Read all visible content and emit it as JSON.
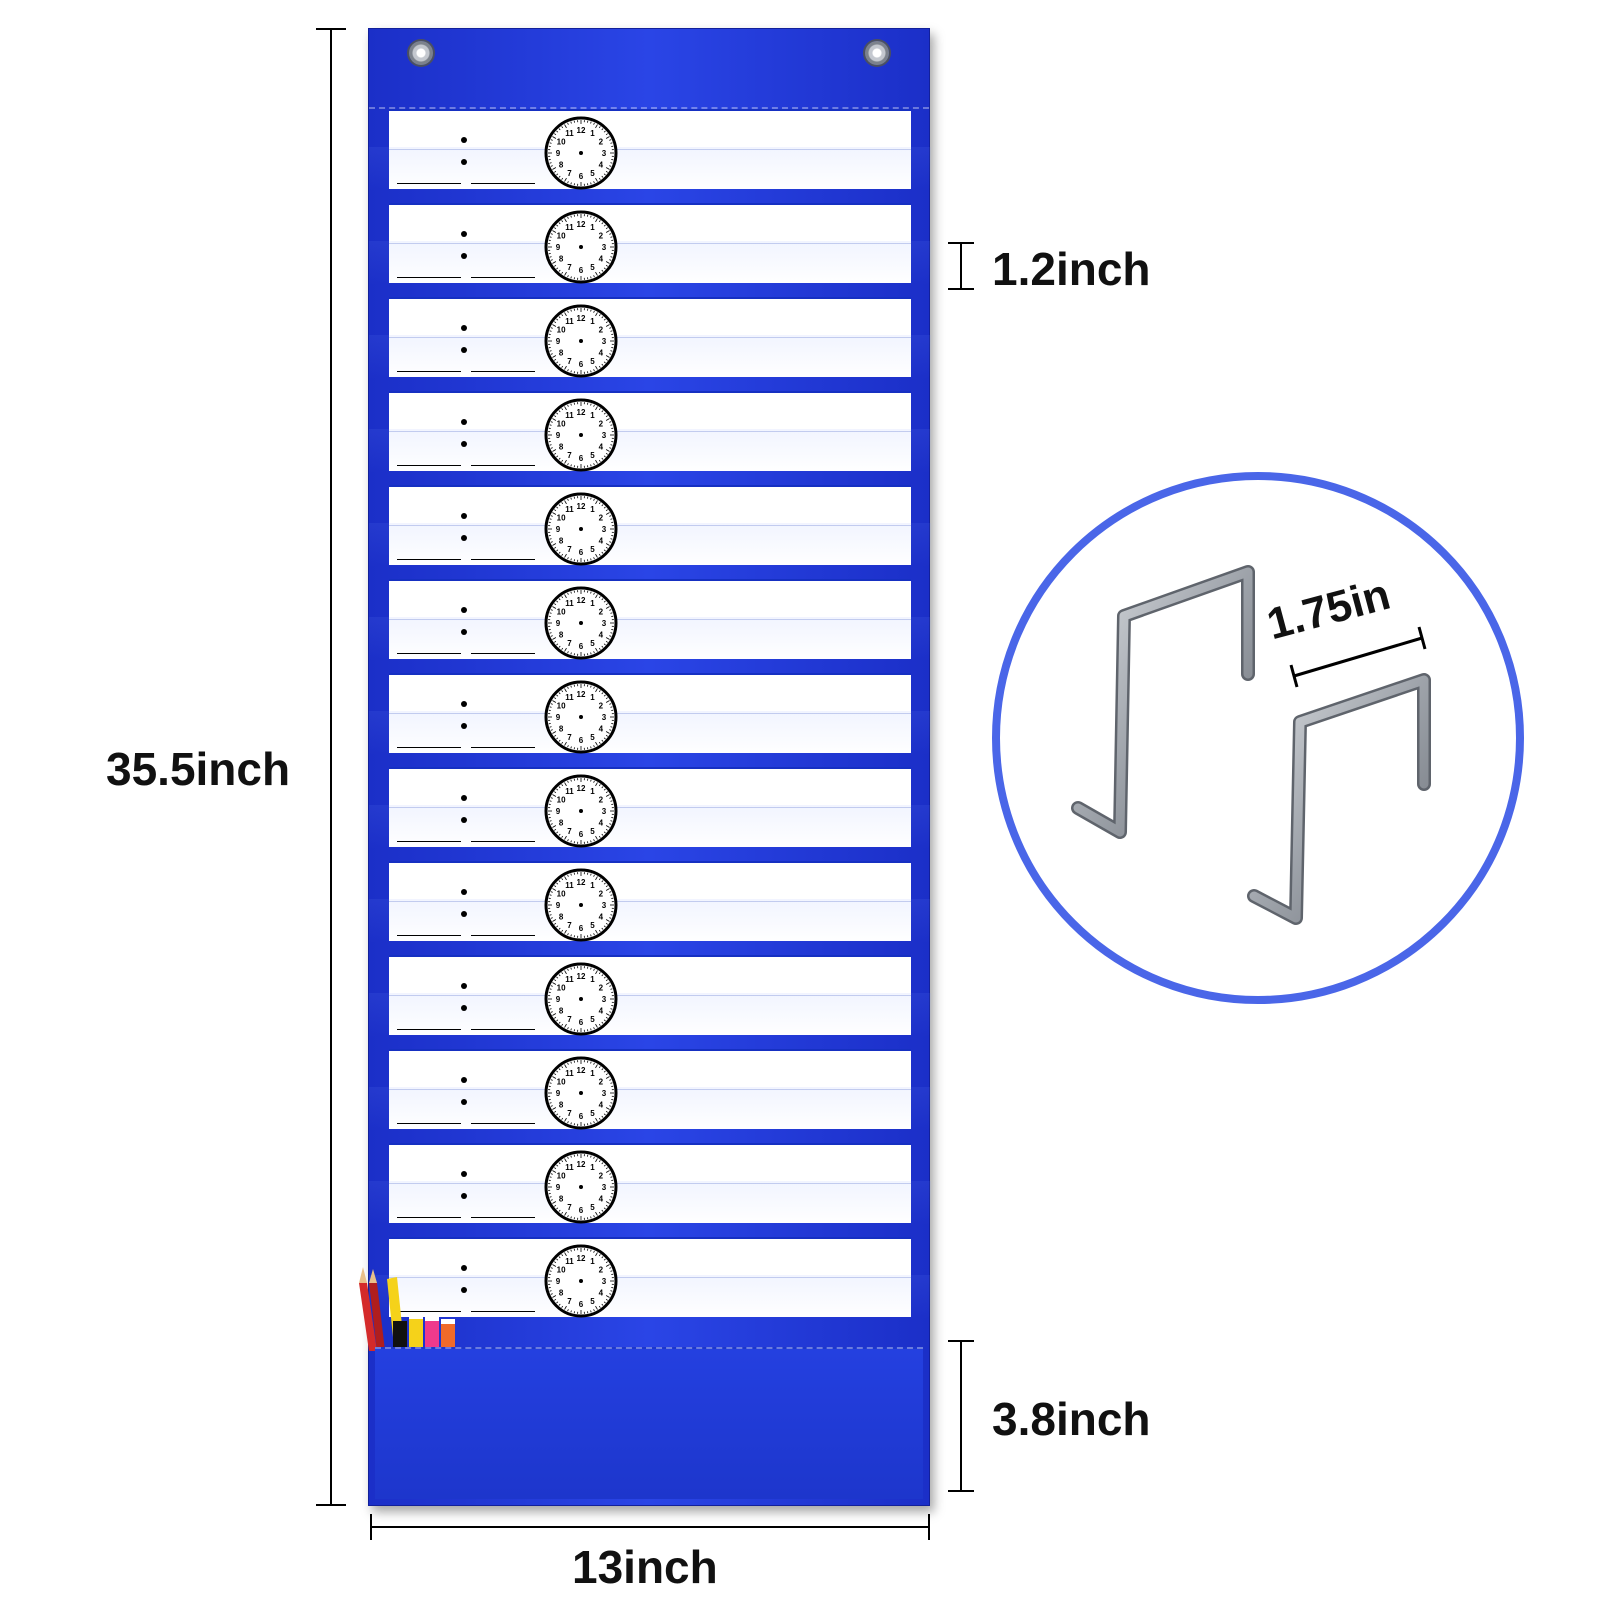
{
  "dimensions": {
    "height_label": "35.5inch",
    "width_label": "13inch",
    "pocket_height_label": "1.2inch",
    "bottom_pocket_label": "3.8inch",
    "hook_width_label": "1.75in"
  },
  "clock_numbers": [
    "12",
    "1",
    "2",
    "3",
    "4",
    "5",
    "6",
    "7",
    "8",
    "9",
    "10",
    "11"
  ],
  "strip_count": 13,
  "colors": {
    "chart_blue": "#2238d8",
    "hook_ring": "#4a66e8",
    "hook_metal": "#a9adb3"
  },
  "decor": {
    "pencils_icon": "colored-pencils-and-markers-icon",
    "hook_icon": "over-door-hook-icon"
  }
}
